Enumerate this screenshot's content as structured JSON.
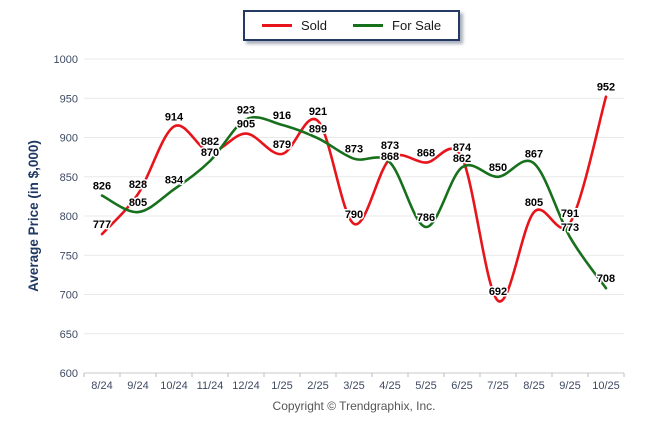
{
  "legend": {
    "items": [
      {
        "label": "Sold",
        "color": "#e8141b"
      },
      {
        "label": "For Sale",
        "color": "#17701c"
      }
    ]
  },
  "chart_data": {
    "type": "line",
    "title": "",
    "ylabel": "Average Price (in $,000)",
    "xlabel": "",
    "ylim": [
      600,
      1000
    ],
    "ytick_interval": 50,
    "grid": true,
    "legend_position": "top-center",
    "categories": [
      "8/24",
      "9/24",
      "10/24",
      "11/24",
      "12/24",
      "1/25",
      "2/25",
      "3/25",
      "4/25",
      "5/25",
      "6/25",
      "7/25",
      "8/25",
      "9/25",
      "10/25"
    ],
    "series": [
      {
        "name": "Sold",
        "color": "#e8141b",
        "values": [
          777,
          828,
          914,
          882,
          905,
          879,
          921,
          790,
          873,
          868,
          874,
          692,
          805,
          791,
          952
        ]
      },
      {
        "name": "For Sale",
        "color": "#17701c",
        "values": [
          826,
          805,
          834,
          870,
          923,
          916,
          899,
          873,
          868,
          786,
          862,
          850,
          867,
          773,
          708
        ]
      }
    ]
  },
  "axis": {
    "ytick_labels": [
      "600",
      "650",
      "700",
      "750",
      "800",
      "850",
      "900",
      "950",
      "1000"
    ]
  },
  "footer": {
    "copyright": "Copyright © Trendgraphix, Inc."
  },
  "colors": {
    "axis_text": "#3e4a63",
    "ytitle": "#1f3864",
    "grid": "#e9e9e9",
    "axis_line": "#c9c9c9",
    "tick_mark": "#bdbdbd",
    "data_label": "#000000",
    "legend_border": "#243a63"
  }
}
